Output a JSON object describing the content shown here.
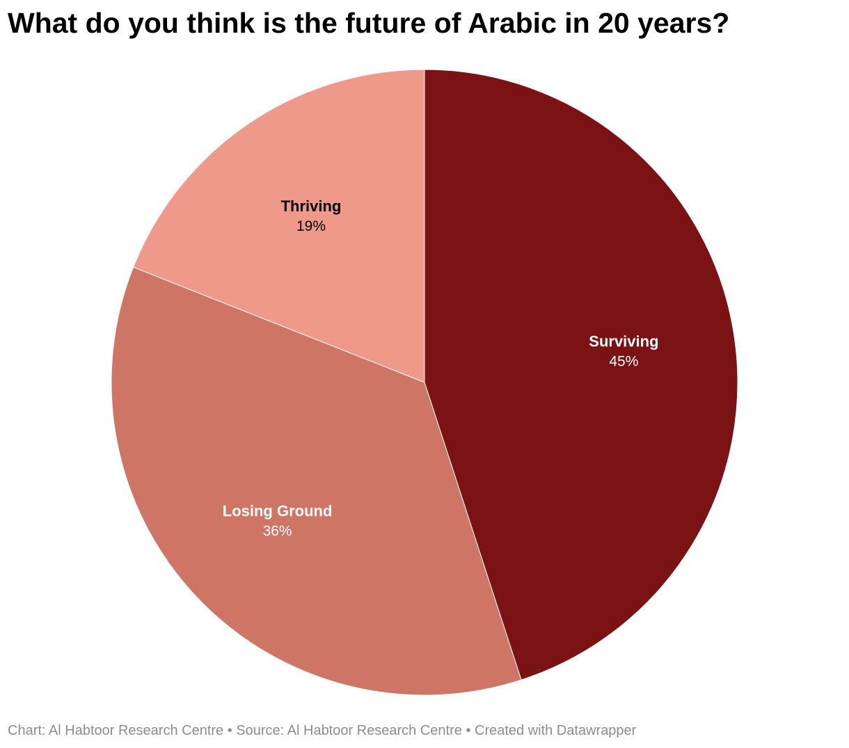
{
  "title": "What do you think is the future of Arabic in 20 years?",
  "footer": {
    "chart_prefix": "Chart: ",
    "chart_credit": "Al Habtoor Research Centre",
    "source_prefix": " • Source: ",
    "source_credit": "Al Habtoor Research Centre",
    "created_text": " • Created with Datawrapper"
  },
  "chart_data": {
    "type": "pie",
    "title": "What do you think is the future of Arabic in 20 years?",
    "slices": [
      {
        "label": "Surviving",
        "value": 45,
        "display": "45%",
        "color": "#7b1214",
        "text_color": "#ffffff"
      },
      {
        "label": "Losing Ground",
        "value": 36,
        "display": "36%",
        "color": "#cf7566",
        "text_color": "#ffffff"
      },
      {
        "label": "Thriving",
        "value": 19,
        "display": "19%",
        "color": "#ef998a",
        "text_color": "#000000"
      }
    ],
    "start_angle": "12 o'clock",
    "direction": "clockwise",
    "legend": "none"
  }
}
